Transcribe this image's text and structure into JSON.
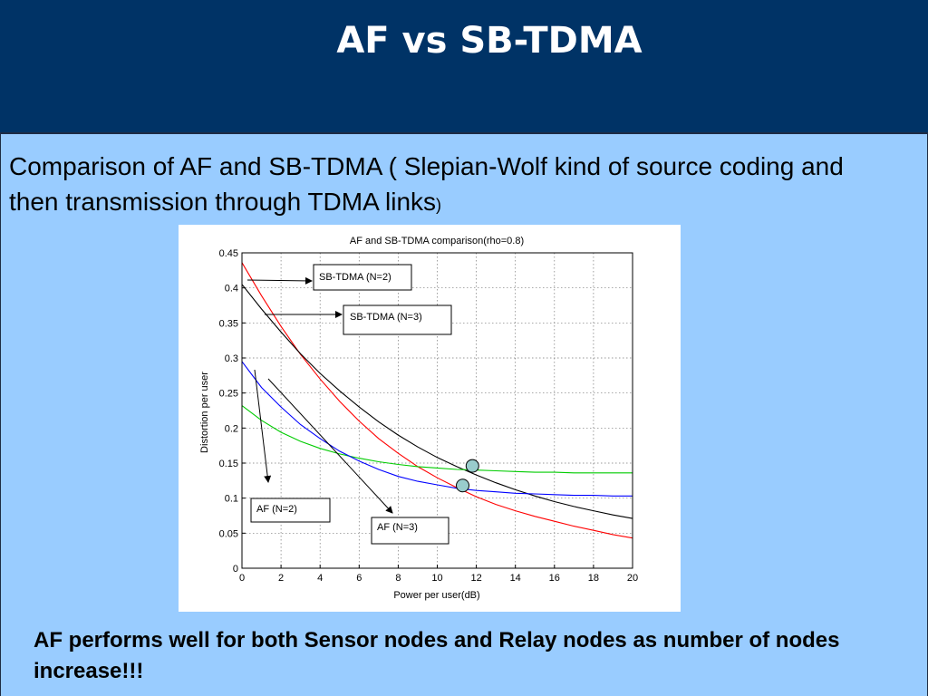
{
  "slide": {
    "title": "AF vs SB-TDMA",
    "intro": "Comparison of AF and SB-TDMA ( Slepian-Wolf kind of source coding and then  transmission through TDMA links",
    "intro_close": ")",
    "conclusion": "AF performs well for both Sensor nodes and Relay nodes as number of nodes increase!!!",
    "colors": {
      "header": "#003366",
      "background": "#99ccff",
      "title_text": "#ffffff"
    }
  },
  "chart_data": {
    "type": "line",
    "title": "AF and SB-TDMA comparison(rho=0.8)",
    "xlabel": "Power per user(dB)",
    "ylabel": "Distortion per user",
    "xlim": [
      0,
      20
    ],
    "ylim": [
      0,
      0.45
    ],
    "xticks": [
      "0",
      "2",
      "4",
      "6",
      "8",
      "10",
      "12",
      "14",
      "16",
      "18",
      "20"
    ],
    "yticks": [
      "0",
      "0.05",
      "0.1",
      "0.15",
      "0.2",
      "0.25",
      "0.3",
      "0.35",
      "0.4",
      "0.45"
    ],
    "grid": true,
    "x": [
      0,
      1,
      2,
      3,
      4,
      5,
      6,
      7,
      8,
      9,
      10,
      11,
      12,
      13,
      14,
      15,
      16,
      17,
      18,
      19,
      20
    ],
    "series": [
      {
        "name": "SB-TDMA (N=2)",
        "color": "#ff0000",
        "values": [
          0.436,
          0.389,
          0.345,
          0.305,
          0.27,
          0.238,
          0.21,
          0.185,
          0.164,
          0.145,
          0.129,
          0.115,
          0.102,
          0.091,
          0.082,
          0.074,
          0.067,
          0.06,
          0.054,
          0.048,
          0.043
        ]
      },
      {
        "name": "SB-TDMA (N=3)",
        "color": "#000000",
        "values": [
          0.405,
          0.37,
          0.337,
          0.306,
          0.278,
          0.253,
          0.23,
          0.209,
          0.19,
          0.173,
          0.158,
          0.145,
          0.133,
          0.122,
          0.112,
          0.103,
          0.095,
          0.088,
          0.082,
          0.076,
          0.071
        ]
      },
      {
        "name": "AF (N=2)",
        "color": "#00cc00",
        "values": [
          0.232,
          0.211,
          0.194,
          0.181,
          0.171,
          0.163,
          0.157,
          0.152,
          0.148,
          0.145,
          0.143,
          0.141,
          0.14,
          0.139,
          0.138,
          0.137,
          0.137,
          0.136,
          0.136,
          0.136,
          0.136
        ]
      },
      {
        "name": "AF (N=3)",
        "color": "#0000ff",
        "values": [
          0.295,
          0.258,
          0.23,
          0.205,
          0.185,
          0.167,
          0.153,
          0.141,
          0.131,
          0.124,
          0.119,
          0.114,
          0.111,
          0.109,
          0.107,
          0.106,
          0.105,
          0.104,
          0.104,
          0.103,
          0.103
        ]
      }
    ],
    "annotations": [
      {
        "text": "SB-TDMA (N=2)",
        "points_to": "SB-TDMA (N=2)"
      },
      {
        "text": "SB-TDMA (N=3)",
        "points_to": "SB-TDMA (N=3)"
      },
      {
        "text": "AF (N=2)",
        "points_to": "AF (N=2)"
      },
      {
        "text": "AF (N=3)",
        "points_to": "AF (N=3)"
      }
    ],
    "markers": [
      {
        "x": 11.8,
        "y": 0.146,
        "color": "#99cccc"
      },
      {
        "x": 11.3,
        "y": 0.118,
        "color": "#99cccc"
      }
    ]
  }
}
